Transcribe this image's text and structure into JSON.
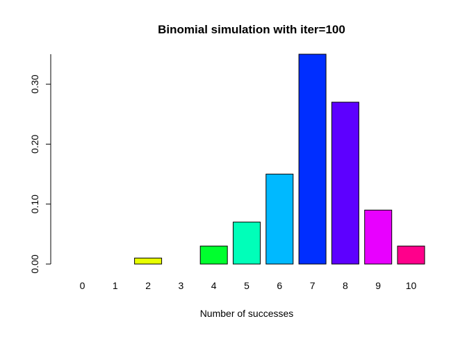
{
  "chart_data": {
    "type": "bar",
    "title": "Binomial simulation with iter=100",
    "xlabel": "Number of successes",
    "ylabel": "",
    "categories": [
      "0",
      "1",
      "2",
      "3",
      "4",
      "5",
      "6",
      "7",
      "8",
      "9",
      "10"
    ],
    "values": [
      0.0,
      0.0,
      0.01,
      0.0,
      0.03,
      0.07,
      0.15,
      0.35,
      0.27,
      0.09,
      0.03
    ],
    "ylim": [
      0,
      0.35
    ],
    "yticks": [
      "0.00",
      "0.10",
      "0.20",
      "0.30"
    ],
    "grid": false,
    "legend": "none",
    "colors": [
      "#FF0000",
      "#FF8B00",
      "#E8FF00",
      "#5DFF00",
      "#00FF2E",
      "#00FFB9",
      "#00B9FF",
      "#002EFF",
      "#5D00FF",
      "#E800FF",
      "#FF008B"
    ]
  }
}
